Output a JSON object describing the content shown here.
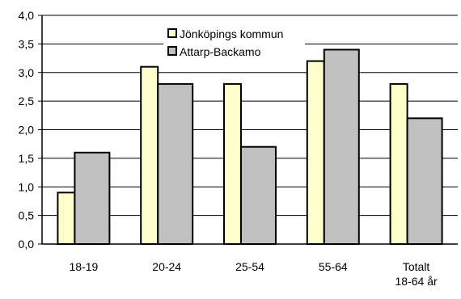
{
  "chart_data": {
    "type": "bar",
    "categories": [
      "18-19",
      "20-24",
      "25-54",
      "55-64",
      "Totalt\n18-64 år"
    ],
    "series": [
      {
        "name": "Jönköpings kommun",
        "values": [
          0.9,
          3.1,
          2.8,
          3.2,
          2.8
        ],
        "color": "#FFFFCC"
      },
      {
        "name": "Attarp-Backamo",
        "values": [
          1.6,
          2.8,
          1.7,
          3.4,
          2.2
        ],
        "color": "#C0C0C0"
      }
    ],
    "ylim": [
      0,
      4.0
    ],
    "yticks": [
      "0,0",
      "0,5",
      "1,0",
      "1,5",
      "2,0",
      "2,5",
      "3,0",
      "3,5",
      "4,0"
    ],
    "ytick_values": [
      0,
      0.5,
      1.0,
      1.5,
      2.0,
      2.5,
      3.0,
      3.5,
      4.0
    ],
    "grid": true,
    "legend": "top-center"
  }
}
